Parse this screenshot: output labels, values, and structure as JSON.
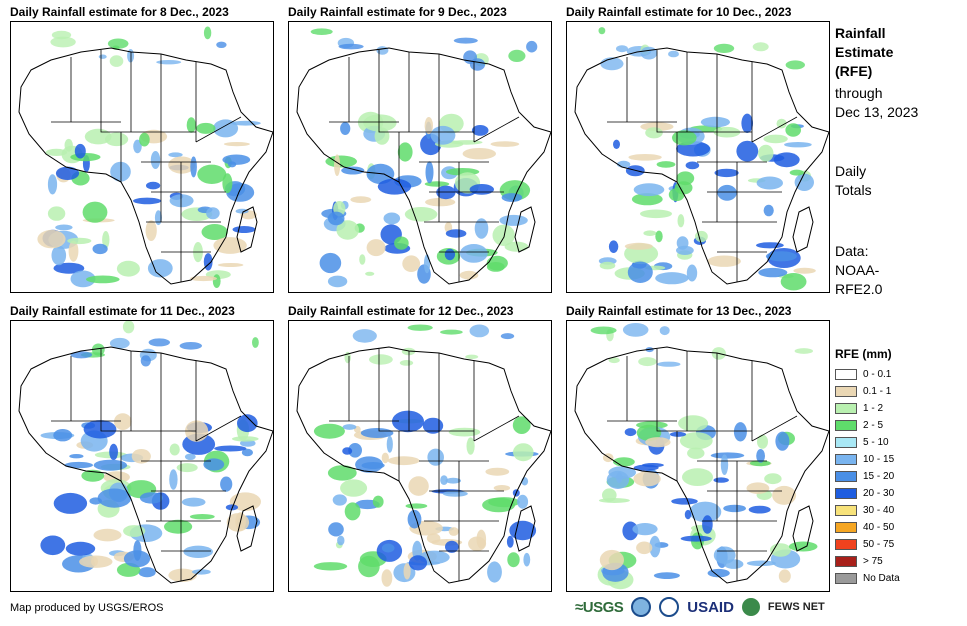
{
  "panels": [
    {
      "title": "Daily Rainfall estimate for 8 Dec., 2023"
    },
    {
      "title": "Daily Rainfall estimate for 9 Dec., 2023"
    },
    {
      "title": "Daily Rainfall estimate for 10 Dec., 2023"
    },
    {
      "title": "Daily Rainfall estimate for 11 Dec., 2023"
    },
    {
      "title": "Daily Rainfall estimate for 12 Dec., 2023"
    },
    {
      "title": "Daily Rainfall estimate for 13 Dec., 2023"
    }
  ],
  "side": {
    "title_line1": "Rainfall",
    "title_line2": "Estimate",
    "title_line3": "(RFE)",
    "through": "through",
    "date": "Dec 13, 2023",
    "daily": "Daily",
    "totals": "Totals",
    "data_label": "Data:",
    "data_src1": "NOAA-",
    "data_src2": "RFE2.0"
  },
  "legend": {
    "title": "RFE (mm)",
    "items": [
      {
        "label": "0 - 0.1",
        "color": "#ffffff"
      },
      {
        "label": "0.1 - 1",
        "color": "#ead7b4"
      },
      {
        "label": "1 - 2",
        "color": "#b9f0b0"
      },
      {
        "label": "2 - 5",
        "color": "#5fdc6b"
      },
      {
        "label": "5 - 10",
        "color": "#a9e8f5"
      },
      {
        "label": "10 - 15",
        "color": "#79b4ef"
      },
      {
        "label": "15 - 20",
        "color": "#4a8fe6"
      },
      {
        "label": "20 - 30",
        "color": "#1e5de0"
      },
      {
        "label": "30 - 40",
        "color": "#f7e27a"
      },
      {
        "label": "40 - 50",
        "color": "#f5a623"
      },
      {
        "label": "50 - 75",
        "color": "#f0421e"
      },
      {
        "label": "> 75",
        "color": "#a8201a"
      },
      {
        "label": "No Data",
        "color": "#9a9a9a"
      }
    ]
  },
  "footer": {
    "credit": "Map produced by USGS/EROS",
    "usgs": "≈USGS",
    "usaid": "USAID",
    "fews": "FEWS NET"
  }
}
